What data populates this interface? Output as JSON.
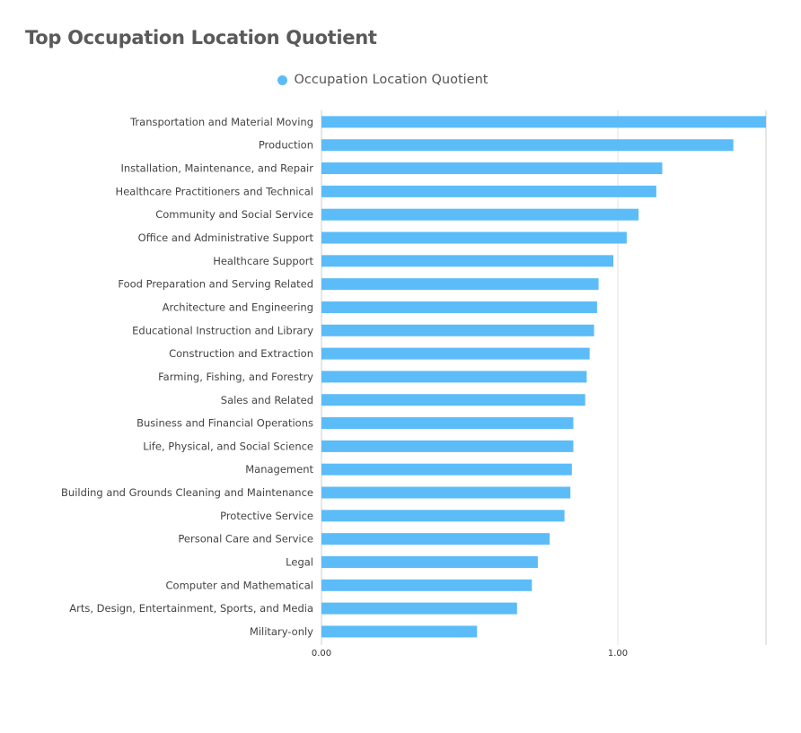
{
  "chart_data": {
    "type": "bar",
    "orientation": "horizontal",
    "title": "Top Occupation Location Quotient",
    "series": [
      {
        "name": "Occupation Location Quotient",
        "color": "#5cbcf8",
        "values": [
          1.5,
          1.39,
          1.15,
          1.13,
          1.07,
          1.03,
          0.985,
          0.935,
          0.93,
          0.92,
          0.905,
          0.895,
          0.89,
          0.85,
          0.85,
          0.845,
          0.84,
          0.82,
          0.77,
          0.73,
          0.71,
          0.66,
          0.525
        ]
      }
    ],
    "categories": [
      "Transportation and Material Moving",
      "Production",
      "Installation, Maintenance, and Repair",
      "Healthcare Practitioners and Technical",
      "Community and Social Service",
      "Office and Administrative Support",
      "Healthcare Support",
      "Food Preparation and Serving Related",
      "Architecture and Engineering",
      "Educational Instruction and Library",
      "Construction and Extraction",
      "Farming, Fishing, and Forestry",
      "Sales and Related",
      "Business and Financial Operations",
      "Life, Physical, and Social Science",
      "Management",
      "Building and Grounds Cleaning and Maintenance",
      "Protective Service",
      "Personal Care and Service",
      "Legal",
      "Computer and Mathematical",
      "Arts, Design, Entertainment, Sports, and Media",
      "Military-only"
    ],
    "x_ticks": [
      "0.00",
      "1.00"
    ],
    "xlim": [
      0,
      1.5
    ],
    "grid": true,
    "legend_position": "top-center"
  }
}
